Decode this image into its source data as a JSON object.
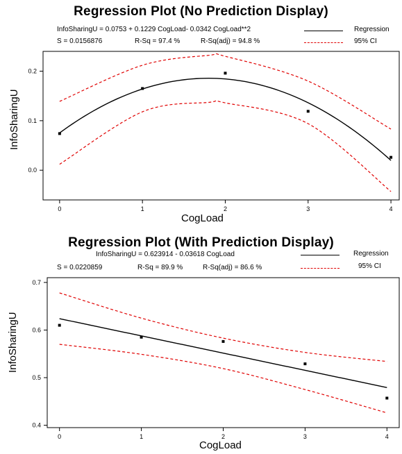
{
  "chart_data": [
    {
      "type": "line",
      "title": "Regression Plot (No Prediction Display)",
      "equation": "InfoSharingU = 0.0753 + 0.1229 CogLoad- 0.0342 CogLoad**2",
      "stats": {
        "s": "S = 0.0156876",
        "rsq": "R-Sq = 97.4 %",
        "rsq_adj": "R-Sq(adj) = 94.8 %"
      },
      "legend": [
        "Regression",
        "95% CI"
      ],
      "xlabel": "CogLoad",
      "ylabel": "InfoSharingU",
      "xticks": [
        "0",
        "1",
        "2",
        "3",
        "4"
      ],
      "yticks": [
        "0.0",
        "0.1",
        "0.2"
      ],
      "xlim": [
        -0.2,
        4.1
      ],
      "ylim": [
        -0.06,
        0.24
      ],
      "points": [
        {
          "x": 0,
          "y": 0.074
        },
        {
          "x": 1,
          "y": 0.165
        },
        {
          "x": 2,
          "y": 0.196
        },
        {
          "x": 3,
          "y": 0.119
        },
        {
          "x": 4,
          "y": 0.026
        }
      ],
      "fit": {
        "kind": "quadratic",
        "coef": [
          0.0753,
          0.1229,
          -0.0342
        ]
      },
      "ci_upper": [
        {
          "x": 0,
          "y": 0.139
        },
        {
          "x": 1,
          "y": 0.212
        },
        {
          "x": 1.8,
          "y": 0.232
        },
        {
          "x": 2,
          "y": 0.23
        },
        {
          "x": 3,
          "y": 0.18
        },
        {
          "x": 4,
          "y": 0.083
        }
      ],
      "ci_lower": [
        {
          "x": 0,
          "y": 0.012
        },
        {
          "x": 1,
          "y": 0.118
        },
        {
          "x": 1.8,
          "y": 0.137
        },
        {
          "x": 2,
          "y": 0.136
        },
        {
          "x": 3,
          "y": 0.094
        },
        {
          "x": 4,
          "y": -0.043
        }
      ],
      "colors": {
        "fit": "#000000",
        "ci": "#e00000",
        "points": "#000000"
      }
    },
    {
      "type": "line",
      "title": "Regression Plot (With Prediction Display)",
      "equation": "InfoSharingU = 0.623914 - 0.03618 CogLoad",
      "stats": {
        "s": "S = 0.0220859",
        "rsq": "R-Sq = 89.9 %",
        "rsq_adj": "R-Sq(adj) = 86.6 %"
      },
      "legend": [
        "Regression",
        "95% CI"
      ],
      "xlabel": "CogLoad",
      "ylabel": "InfoSharingU",
      "xticks": [
        "0",
        "1",
        "2",
        "3",
        "4"
      ],
      "yticks": [
        "0.4",
        "0.5",
        "0.6",
        "0.7"
      ],
      "xlim": [
        -0.15,
        4.15
      ],
      "ylim": [
        0.395,
        0.71
      ],
      "points": [
        {
          "x": 0,
          "y": 0.61
        },
        {
          "x": 1,
          "y": 0.585
        },
        {
          "x": 2,
          "y": 0.576
        },
        {
          "x": 3,
          "y": 0.529
        },
        {
          "x": 4,
          "y": 0.457
        }
      ],
      "fit": {
        "kind": "linear",
        "coef": [
          0.623914,
          -0.03618
        ]
      },
      "ci_upper": [
        {
          "x": 0,
          "y": 0.678
        },
        {
          "x": 1,
          "y": 0.625
        },
        {
          "x": 2,
          "y": 0.583
        },
        {
          "x": 3,
          "y": 0.553
        },
        {
          "x": 4,
          "y": 0.534
        }
      ],
      "ci_lower": [
        {
          "x": 0,
          "y": 0.57
        },
        {
          "x": 1,
          "y": 0.549
        },
        {
          "x": 2,
          "y": 0.519
        },
        {
          "x": 3,
          "y": 0.475
        },
        {
          "x": 4,
          "y": 0.426
        }
      ],
      "colors": {
        "fit": "#000000",
        "ci": "#e00000",
        "points": "#000000"
      }
    }
  ]
}
